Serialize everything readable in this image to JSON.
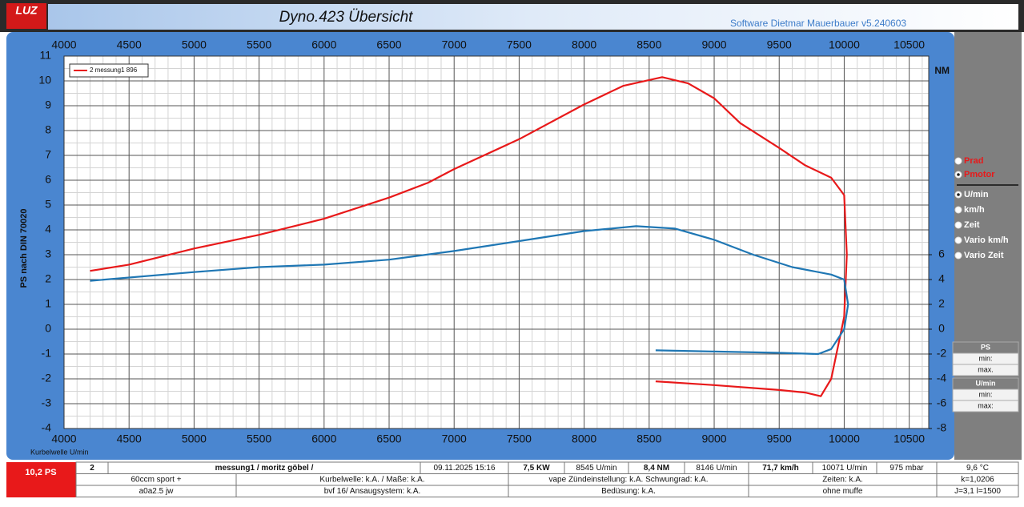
{
  "header": {
    "logo": "LUZ",
    "title": "Dyno.423 Übersicht",
    "software": "Software Dietmar Mauerbauer v5.240603"
  },
  "chart_data": {
    "type": "line",
    "x_label": "Kurbelwelle U/min",
    "y_label": "PS nach DIN 70020",
    "y2_label": "NM",
    "xlim": [
      4000,
      10650
    ],
    "xticks": [
      4000,
      4500,
      5000,
      5500,
      6000,
      6500,
      7000,
      7500,
      8000,
      8500,
      9000,
      9500,
      10000,
      10500
    ],
    "ylim": [
      -4,
      11
    ],
    "yticks": [
      -4,
      -3,
      -2,
      -1,
      0,
      1,
      2,
      3,
      4,
      5,
      6,
      7,
      8,
      9,
      10,
      11
    ],
    "y2lim": [
      -8,
      22
    ],
    "y2ticks": [
      -8,
      -6,
      -4,
      -2,
      0,
      2,
      4,
      6
    ],
    "grid": true,
    "legend": "top-left",
    "series": [
      {
        "name": "2  messung1 896",
        "color": "#e8191a",
        "x": [
          4200,
          4500,
          5000,
          5500,
          6000,
          6500,
          6800,
          7000,
          7500,
          8000,
          8300,
          8600,
          8800,
          9000,
          9200,
          9500,
          9700,
          9900,
          10000,
          10020,
          10000,
          9900,
          9820,
          9700,
          9500,
          9000,
          8550
        ],
        "values": [
          2.35,
          2.6,
          3.25,
          3.8,
          4.45,
          5.3,
          5.9,
          6.45,
          7.65,
          9.05,
          9.8,
          10.15,
          9.9,
          9.3,
          8.3,
          7.3,
          6.6,
          6.1,
          5.4,
          3,
          0.5,
          -2,
          -2.7,
          -2.55,
          -2.45,
          -2.25,
          -2.1
        ]
      },
      {
        "color": "#1f77b4",
        "axis": "y2",
        "x": [
          4200,
          5000,
          5500,
          6000,
          6500,
          7000,
          7500,
          8000,
          8400,
          8700,
          9000,
          9300,
          9600,
          9900,
          10000,
          10030,
          10000,
          9900,
          9800,
          9500,
          9000,
          8550
        ],
        "values": [
          3.9,
          4.6,
          5.0,
          5.2,
          5.6,
          6.3,
          7.1,
          7.9,
          8.3,
          8.1,
          7.2,
          6.0,
          5.0,
          4.4,
          4.0,
          2.0,
          0,
          -1.6,
          -2.0,
          -1.9,
          -1.8,
          -1.7
        ]
      }
    ]
  },
  "side_panel": {
    "options": [
      {
        "label": "Prad",
        "selected": false,
        "color": "#e8191a"
      },
      {
        "label": "Pmotor",
        "selected": true,
        "color": "#e8191a"
      },
      {
        "label": "U/min",
        "selected": true,
        "color": "#ffffff"
      },
      {
        "label": "km/h",
        "selected": false,
        "color": "#ffffff"
      },
      {
        "label": "Zeit",
        "selected": false,
        "color": "#ffffff"
      },
      {
        "label": "Vario km/h",
        "selected": false,
        "color": "#ffffff"
      },
      {
        "label": "Vario Zeit",
        "selected": false,
        "color": "#ffffff"
      }
    ],
    "stats": [
      [
        "PS",
        "min:",
        "max."
      ],
      [
        "U/min",
        "min:",
        "max:"
      ]
    ]
  },
  "table": {
    "result": "10,2 PS",
    "rows": [
      [
        "2",
        "messung1 / moritz göbel /",
        "09.11.2025 15:16",
        "7,5  KW",
        "8545  U/min",
        "8,4  NM",
        "8146  U/min",
        "71,7 km/h",
        "10071  U/min",
        "975  mbar",
        "9,6 °C"
      ],
      [
        "60ccm sport +",
        "Kurbelwelle: k.A. / Maße: k.A.",
        "vape  Zündeinstellung: k.A. Schwungrad: k.A.",
        "Zeiten: k.A.",
        "k=1,0206"
      ],
      [
        "a0a2.5 jw",
        "bvf 16/ Ansaugsystem: k.A.",
        "Bedüsung: k.A.",
        "ohne muffe",
        "J=3,1 l=1500"
      ]
    ]
  }
}
